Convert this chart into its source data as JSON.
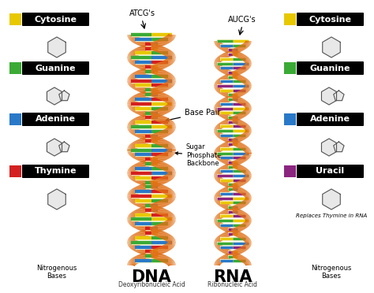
{
  "bg_color": "#ffffff",
  "border_color": "#111111",
  "left_labels": [
    "Cytosine",
    "Guanine",
    "Adenine",
    "Thymine"
  ],
  "left_colors": [
    "#e8c800",
    "#3aaa35",
    "#2979c8",
    "#d42020"
  ],
  "right_labels": [
    "Cytosine",
    "Guanine",
    "Adenine",
    "Uracil"
  ],
  "right_colors": [
    "#e8c800",
    "#3aaa35",
    "#2979c8",
    "#8b2580"
  ],
  "dna_label": "DNA",
  "dna_sub": "Deoxyribonucleic Acid",
  "dna_atcg": "ATCG's",
  "rna_label": "RNA",
  "rna_sub": "Ribonucleic Acid",
  "rna_aucg": "AUCG's",
  "base_pair_label": "Base Pair",
  "sugar_label": "Sugar\nPhosphate\nBackbone",
  "left_bottom_label": "Nitrogenous\nBases",
  "right_bottom_label": "Nitrogenous\nBases",
  "right_extra_label": "Replaces Thymine in RNA",
  "backbone_color": "#e07018",
  "backbone_light": "#f5a050",
  "base_colors": [
    "#e8c800",
    "#3aaa35",
    "#2979c8",
    "#d42020",
    "#8b2580"
  ],
  "cream": "#fffacd"
}
